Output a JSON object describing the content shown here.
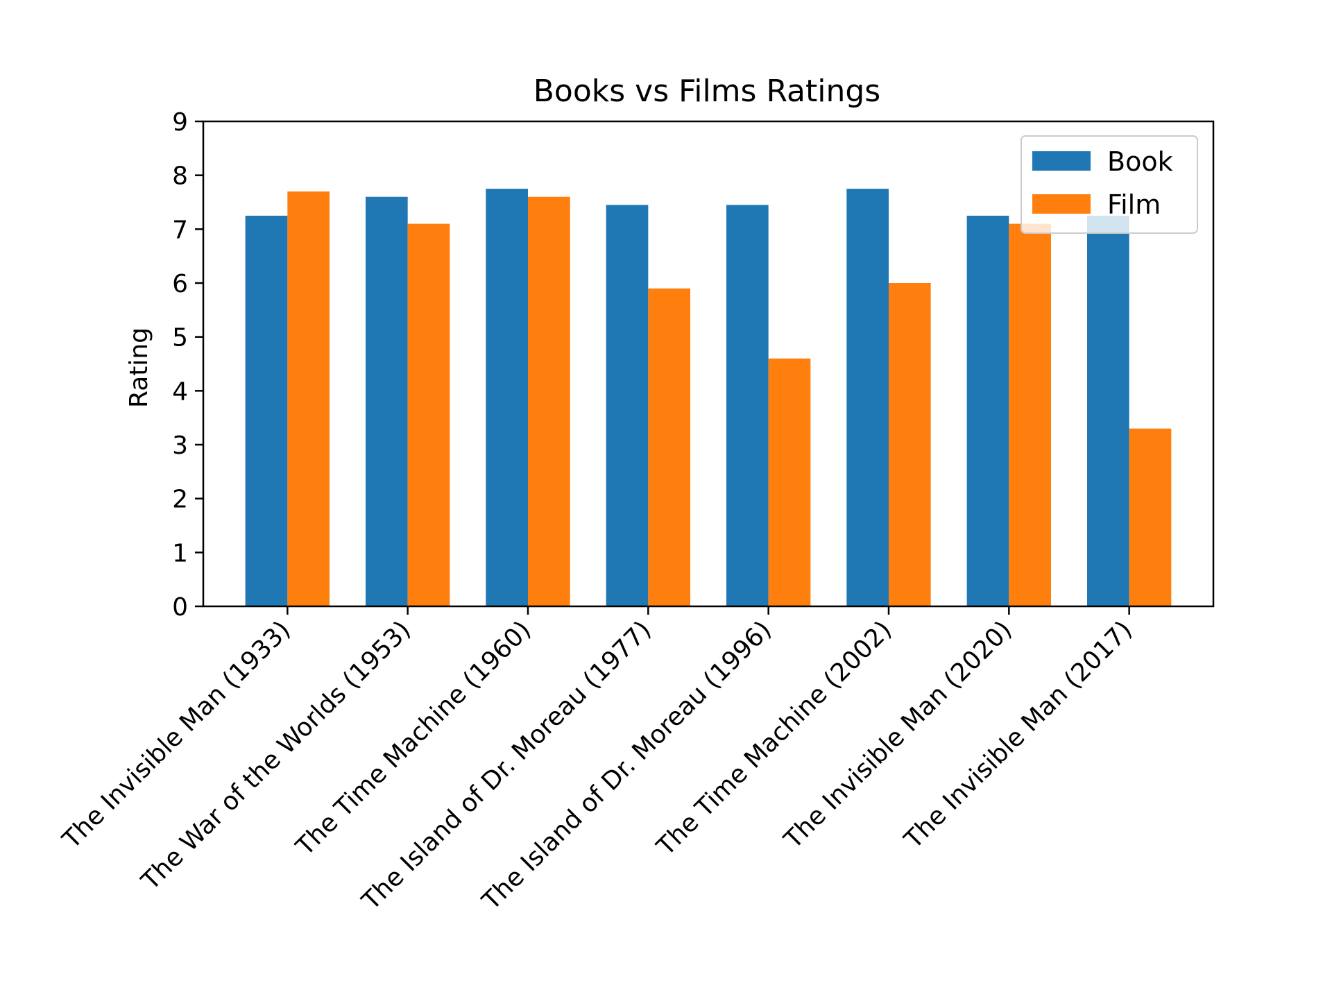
{
  "chart_data": {
    "type": "bar",
    "title": "Books vs Films Ratings",
    "xlabel": "",
    "ylabel": "Rating",
    "ylim": [
      0,
      9
    ],
    "yticks": [
      "0",
      "1",
      "2",
      "3",
      "4",
      "5",
      "6",
      "7",
      "8",
      "9"
    ],
    "categories": [
      "The Invisible Man (1933)",
      "The War of the Worlds (1953)",
      "The Time Machine (1960)",
      "The Island of Dr. Moreau (1977)",
      "The Island of Dr. Moreau (1996)",
      "The Time Machine (2002)",
      "The Invisible Man (2020)",
      "The Invisible Man (2017)"
    ],
    "series": [
      {
        "name": "Book",
        "color": "#1f77b4",
        "values": [
          7.25,
          7.6,
          7.75,
          7.45,
          7.45,
          7.75,
          7.25,
          7.25
        ]
      },
      {
        "name": "Film",
        "color": "#ff7f0e",
        "values": [
          7.7,
          7.1,
          7.6,
          5.9,
          4.6,
          6.0,
          7.1,
          3.3
        ]
      }
    ],
    "legend": {
      "position": "top-right"
    },
    "grid": false
  }
}
